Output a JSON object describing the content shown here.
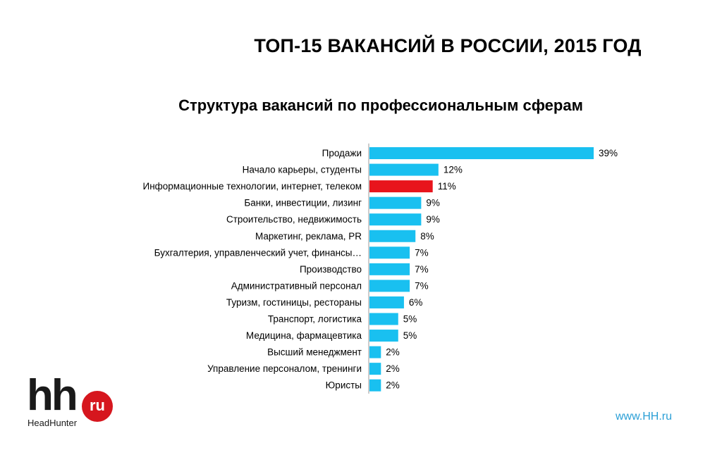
{
  "page": {
    "title": "ТОП-15 ВАКАНСИЙ В РОССИИ, 2015 ГОД",
    "footer_url": "www.HH.ru"
  },
  "logo": {
    "mark": "hh",
    "badge": "ru",
    "subtitle": "HeadHunter",
    "badge_color": "#d6161e"
  },
  "chart_data": {
    "type": "bar",
    "orientation": "horizontal",
    "title": "Структура вакансий по профессиональным сферам",
    "categories": [
      "Продажи",
      "Начало карьеры, студенты",
      "Информационные технологии, интернет, телеком",
      "Банки, инвестиции, лизинг",
      "Строительство, недвижимость",
      "Маркетинг, реклама, PR",
      "Бухгалтерия, управленческий учет, финансы…",
      "Производство",
      "Административный персонал",
      "Туризм, гостиницы, рестораны",
      "Транспорт, логистика",
      "Медицина, фармацевтика",
      "Высший менеджмент",
      "Управление персоналом, тренинги",
      "Юристы"
    ],
    "values": [
      39,
      12,
      11,
      9,
      9,
      8,
      7,
      7,
      7,
      6,
      5,
      5,
      2,
      2,
      2
    ],
    "value_labels": [
      "39%",
      "12%",
      "11%",
      "9%",
      "9%",
      "8%",
      "7%",
      "7%",
      "7%",
      "6%",
      "5%",
      "5%",
      "2%",
      "2%",
      "2%"
    ],
    "unit": "%",
    "colors": {
      "default": "#19c0f0",
      "highlight": "#e8141c",
      "axis": "#9a9a9a"
    },
    "highlight_index": 2,
    "grid": false,
    "legend": "none"
  }
}
